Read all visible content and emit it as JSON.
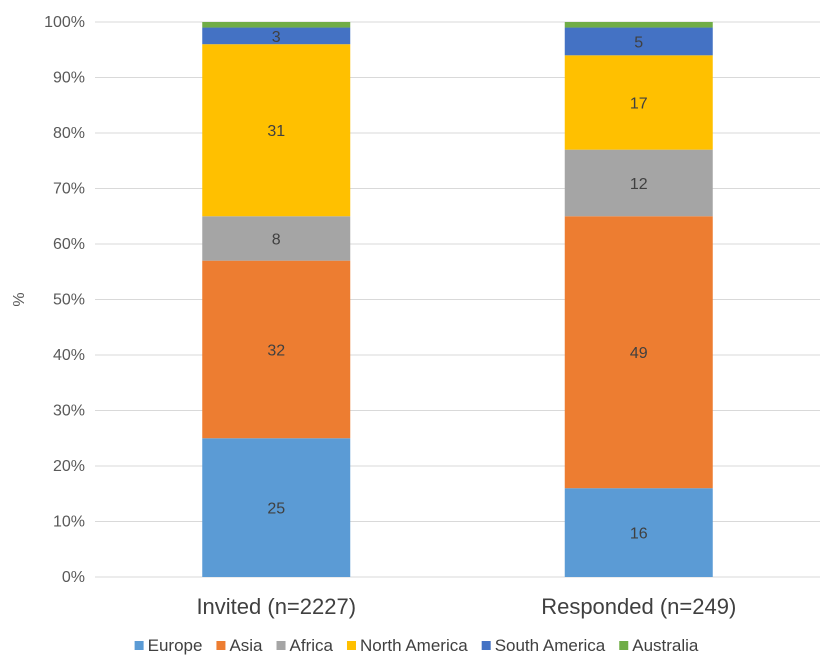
{
  "chart_data": {
    "type": "bar",
    "stacked": true,
    "percent_stacked": true,
    "title": "",
    "xlabel": "",
    "ylabel": "%",
    "ylim": [
      0,
      100
    ],
    "yticks": [
      "0%",
      "10%",
      "20%",
      "30%",
      "40%",
      "50%",
      "60%",
      "70%",
      "80%",
      "90%",
      "100%"
    ],
    "categories": [
      "Invited (n=2227)",
      "Responded (n=249)"
    ],
    "series": [
      {
        "name": "Europe",
        "color": "#5B9BD5",
        "values": [
          25,
          16
        ]
      },
      {
        "name": "Asia",
        "color": "#ED7D31",
        "values": [
          32,
          49
        ]
      },
      {
        "name": "Africa",
        "color": "#A5A5A5",
        "values": [
          8,
          12
        ]
      },
      {
        "name": "North America",
        "color": "#FFC000",
        "values": [
          31,
          17
        ]
      },
      {
        "name": "South America",
        "color": "#4472C4",
        "values": [
          3,
          5
        ]
      },
      {
        "name": "Australia",
        "color": "#70AD47",
        "values": [
          1,
          1
        ]
      }
    ],
    "data_labels": [
      [
        "25",
        "32",
        "8",
        "31",
        "3",
        ""
      ],
      [
        "16",
        "49",
        "12",
        "17",
        "5",
        ""
      ]
    ],
    "legend": "bottom",
    "grid": true
  }
}
